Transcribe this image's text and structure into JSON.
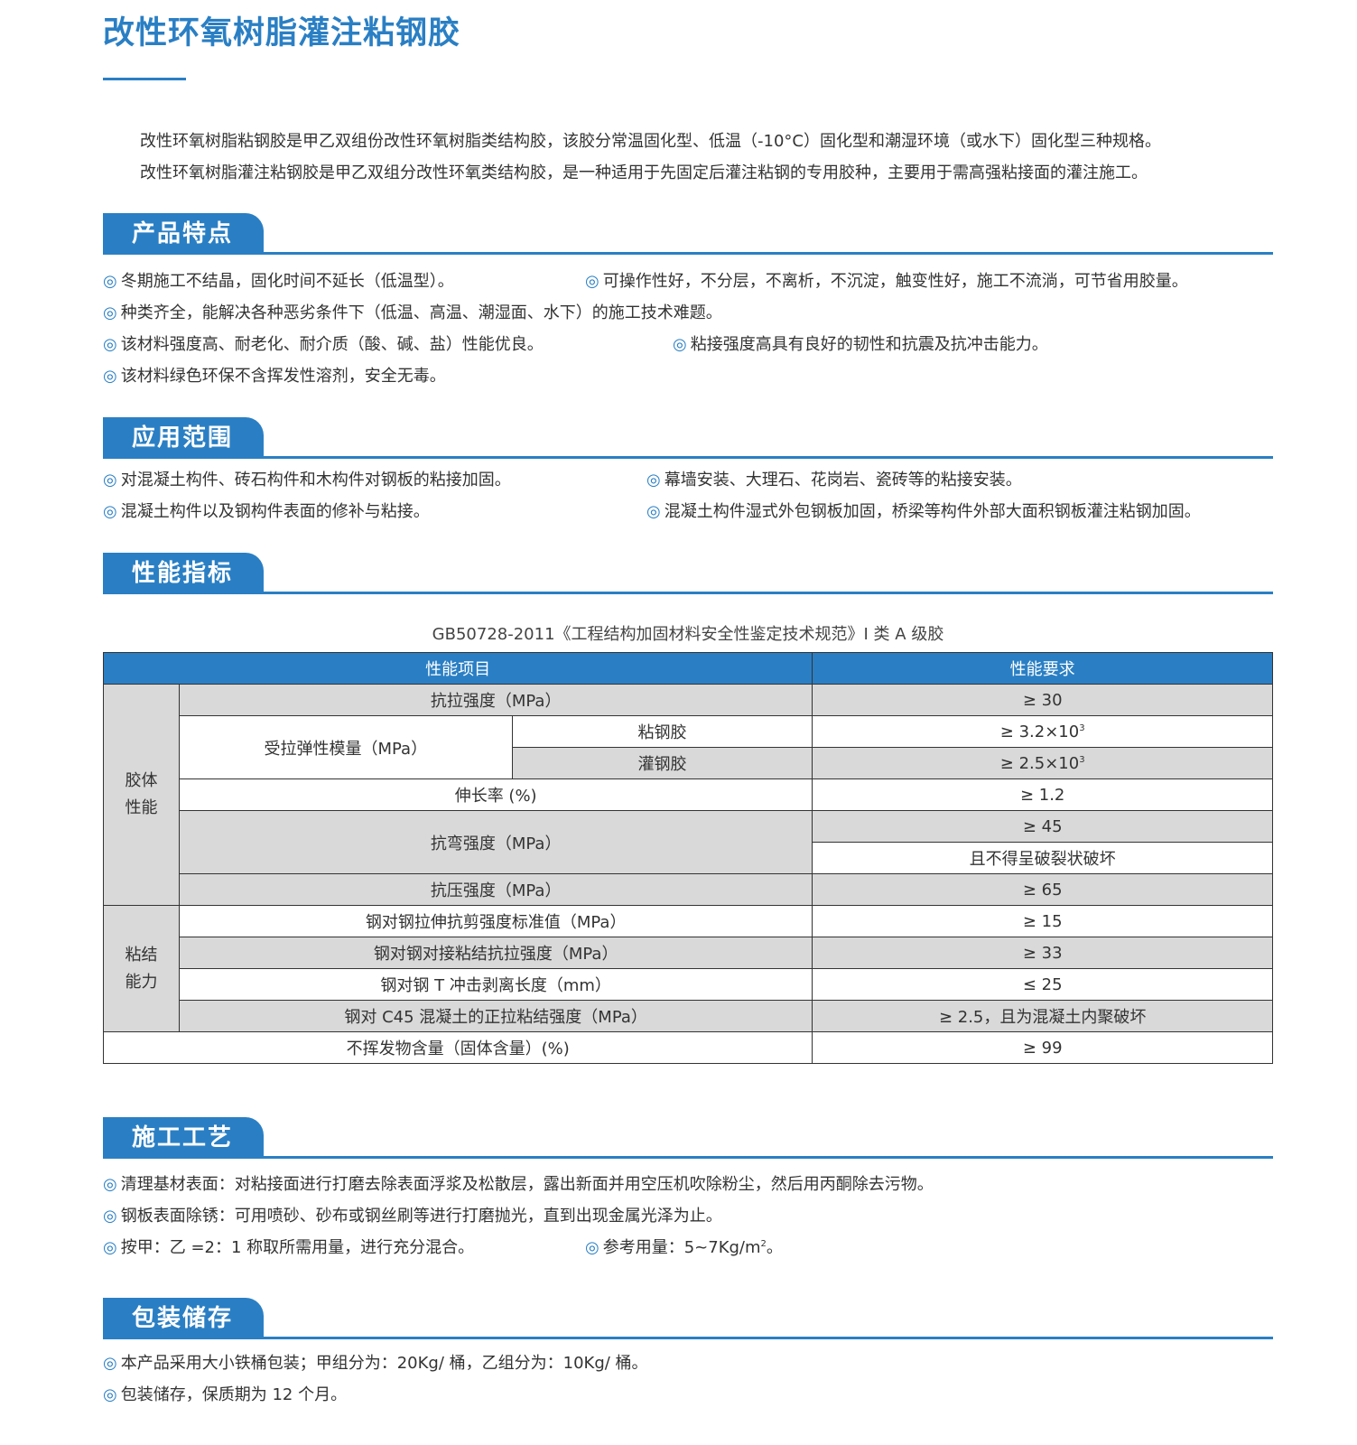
{
  "title": "改性环氧树脂灌注粘钢胶",
  "intro": [
    "改性环氧树脂粘钢胶是甲乙双组份改性环氧树脂类结构胶，该胶分常温固化型、低温（-10°C）固化型和潮湿环境（或水下）固化型三种规格。",
    "改性环氧树脂灌注粘钢胶是甲乙双组分改性环氧类结构胶，是一种适用于先固定后灌注粘钢的专用胶种，主要用于需高强粘接面的灌注施工。"
  ],
  "bullet_icon": "◎",
  "accent_color": "#2a7fc4",
  "features": {
    "heading": "产品特点",
    "items": [
      "冬期施工不结晶，固化时间不延长（低温型）。",
      "可操作性好，不分层，不离析，不沉淀，触变性好，施工不流淌，可节省用胶量。",
      "种类齐全，能解决各种恶劣条件下（低温、高温、潮湿面、水下）的施工技术难题。",
      "该材料强度高、耐老化、耐介质（酸、碱、盐）性能优良。",
      "粘接强度高具有良好的韧性和抗震及抗冲击能力。",
      "该材料绿色环保不含挥发性溶剂，安全无毒。"
    ]
  },
  "scope": {
    "heading": "应用范围",
    "items": [
      "对混凝土构件、砖石构件和木构件对钢板的粘接加固。",
      "幕墙安装、大理石、花岗岩、瓷砖等的粘接安装。",
      "混凝土构件以及钢构件表面的修补与粘接。",
      "混凝土构件湿式外包钢板加固，桥梁等构件外部大面积钢板灌注粘钢加固。"
    ]
  },
  "performance": {
    "heading": "性能指标",
    "caption": "GB50728-2011《工程结构加固材料安全性鉴定技术规范》I 类 A 级胶",
    "table": {
      "header": [
        "性能项目",
        "性能要求"
      ],
      "group1": "胶体\n性能",
      "group2": "粘结\n能力",
      "r1": [
        "抗拉强度（MPa）",
        "≥ 30"
      ],
      "r2": [
        "受拉弹性模量（MPa）",
        "粘钢胶",
        "≥ 3.2×10",
        "3"
      ],
      "r3": [
        "灌钢胶",
        "≥ 2.5×10",
        "3"
      ],
      "r4": [
        "伸长率 (%)",
        "≥ 1.2"
      ],
      "r5": [
        "抗弯强度（MPa）",
        "≥ 45",
        "且不得呈破裂状破坏"
      ],
      "r6": [
        "抗压强度（MPa）",
        "≥ 65"
      ],
      "r7": [
        "钢对钢拉伸抗剪强度标准值（MPa）",
        "≥ 15"
      ],
      "r8": [
        "钢对钢对接粘结抗拉强度（MPa）",
        "≥ 33"
      ],
      "r9": [
        "钢对钢 T 冲击剥离长度（mm）",
        "≤ 25"
      ],
      "r10": [
        "钢对 C45 混凝土的正拉粘结强度（MPa）",
        "≥ 2.5，且为混凝土内聚破坏"
      ],
      "r11": [
        "不挥发物含量（固体含量）(%)",
        "≥ 99"
      ]
    }
  },
  "process": {
    "heading": "施工工艺",
    "items": [
      "清理基材表面：对粘接面进行打磨去除表面浮浆及松散层，露出新面并用空压机吹除粉尘，然后用丙酮除去污物。",
      "钢板表面除锈：可用喷砂、砂布或钢丝刷等进行打磨抛光，直到出现金属光泽为止。",
      "按甲：乙 =2：1 称取所需用量，进行充分混合。",
      "参考用量：5~7Kg/m",
      "2",
      "。"
    ]
  },
  "storage": {
    "heading": "包装储存",
    "items": [
      "本产品采用大小铁桶包装；甲组分为：20Kg/ 桶，乙组分为：10Kg/ 桶。",
      "包装储存，保质期为 12 个月。"
    ]
  }
}
